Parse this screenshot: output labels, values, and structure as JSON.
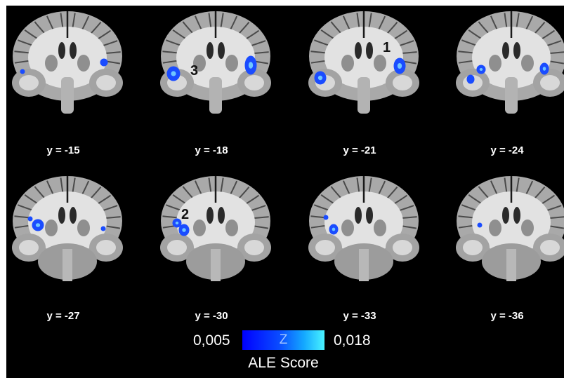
{
  "slices": [
    {
      "label": "y = -15",
      "row": 0,
      "col": 0,
      "blobs": [
        [
          21,
          92,
          2,
          2
        ],
        [
          137,
          79,
          4,
          4
        ]
      ]
    },
    {
      "label": "y = -18",
      "row": 0,
      "col": 1,
      "blobs": [
        [
          25,
          95,
          8,
          9
        ],
        [
          135,
          83,
          7,
          12
        ]
      ]
    },
    {
      "label": "y = -21",
      "row": 0,
      "col": 2,
      "blobs": [
        [
          23,
          101,
          7,
          8
        ],
        [
          136,
          84,
          7,
          10
        ]
      ]
    },
    {
      "label": "y = -24",
      "row": 0,
      "col": 3,
      "blobs": [
        [
          42,
          89,
          5,
          5
        ],
        [
          27,
          103,
          4,
          5
        ],
        [
          132,
          88,
          5,
          7
        ]
      ]
    },
    {
      "label": "y = -27",
      "row": 1,
      "col": 0,
      "blobs": [
        [
          43,
          76,
          7,
          7
        ],
        [
          32,
          67,
          2,
          2
        ],
        [
          136,
          81,
          2,
          2
        ]
      ]
    },
    {
      "label": "y = -30",
      "row": 1,
      "col": 1,
      "blobs": [
        [
          30,
          73,
          5,
          5
        ],
        [
          40,
          83,
          6,
          7
        ]
      ]
    },
    {
      "label": "y = -33",
      "row": 1,
      "col": 2,
      "blobs": [
        [
          42,
          82,
          5,
          6
        ],
        [
          31,
          65,
          2,
          2
        ]
      ]
    },
    {
      "label": "y = -36",
      "row": 1,
      "col": 3,
      "blobs": [
        [
          40,
          76,
          2,
          2
        ]
      ]
    }
  ],
  "clusters": [
    {
      "label": "1",
      "slice": 2
    },
    {
      "label": "3",
      "slice": 1
    },
    {
      "label": "2",
      "slice": 5
    }
  ],
  "colorbar": {
    "min_label": "0,005",
    "max_label": "0,018",
    "mid_label": "Z",
    "title": "ALE Score",
    "colors": [
      "#0000ff",
      "#4af4ff"
    ]
  },
  "colors": {
    "background": "#000000",
    "activation": "#1a4cff",
    "activation_core": "#6fc6ff"
  }
}
